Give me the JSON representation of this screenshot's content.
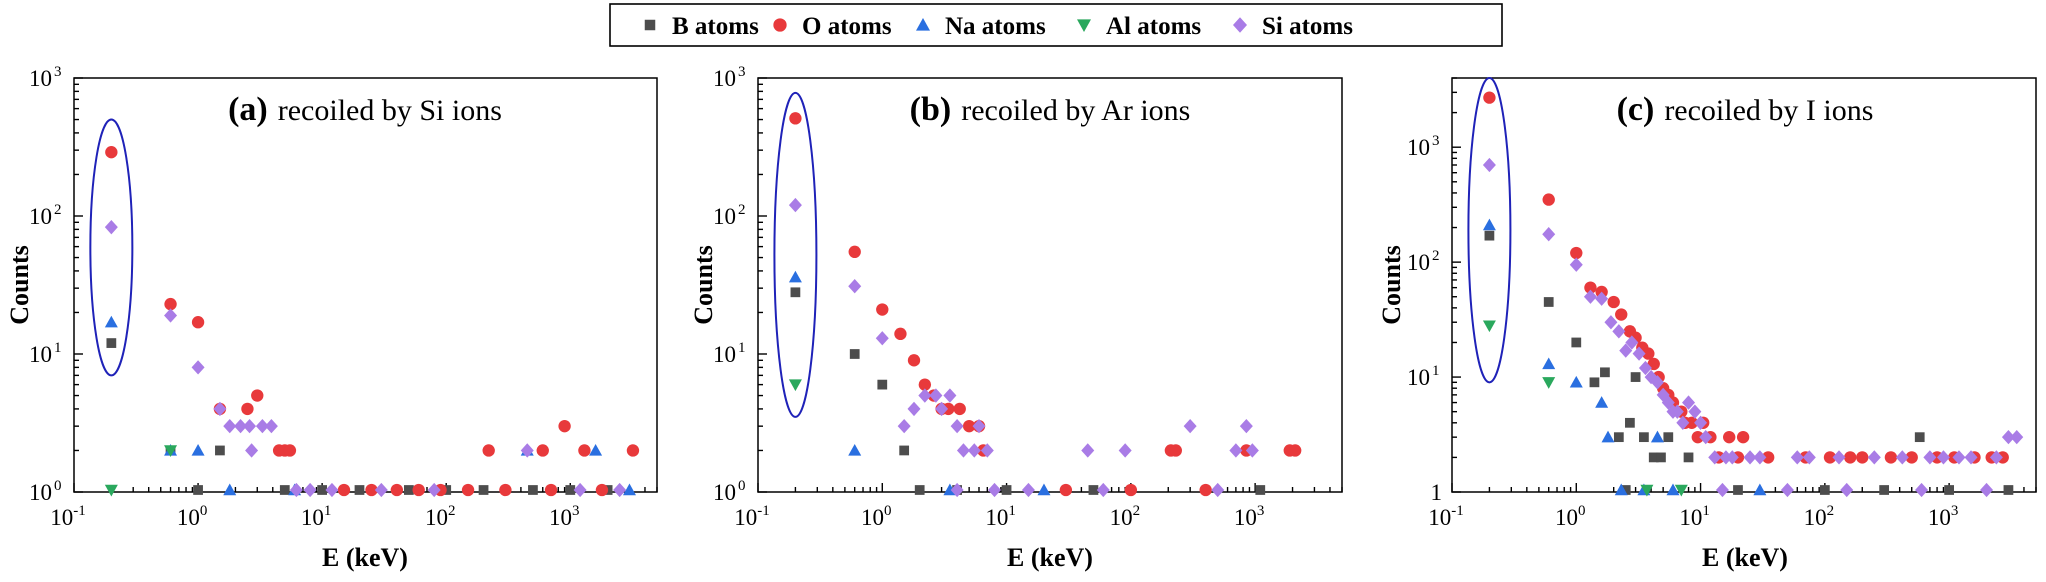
{
  "legend": {
    "items": [
      {
        "label": "B atoms",
        "marker": "square",
        "color": "#4d4d4d"
      },
      {
        "label": "O atoms",
        "marker": "circle",
        "color": "#e8393b"
      },
      {
        "label": "Na atoms",
        "marker": "triangle",
        "color": "#2a6fe0"
      },
      {
        "label": "Al atoms",
        "marker": "tri-down",
        "color": "#2aa85d"
      },
      {
        "label": "Si atoms",
        "marker": "diamond",
        "color": "#a97ce6"
      }
    ]
  },
  "chart_data": [
    {
      "type": "scatter",
      "panel_tag": "(a)",
      "title": "recoiled by Si ions",
      "xlabel": "E (keV)",
      "ylabel": "Counts",
      "xscale": "log",
      "yscale": "log",
      "xlim": [
        0.1,
        5000
      ],
      "ylim": [
        1,
        1000
      ],
      "x_ticks": [
        "10",
        "10",
        "10",
        "10",
        "10"
      ],
      "x_tick_exp": [
        "-1",
        "0",
        "1",
        "2",
        "3"
      ],
      "y_ticks": [
        "10",
        "10",
        "10",
        "10"
      ],
      "y_tick_exp": [
        "0",
        "1",
        "2",
        "3"
      ],
      "highlight_ellipse": {
        "x": 0.2,
        "ylim": [
          7,
          500
        ]
      },
      "series": [
        {
          "name": "B atoms",
          "points": [
            [
              0.2,
              12
            ],
            [
              0.6,
              2
            ],
            [
              1.5,
              2
            ],
            [
              1.0,
              1
            ],
            [
              5,
              1
            ],
            [
              10,
              1
            ],
            [
              20,
              1
            ],
            [
              50,
              1
            ],
            [
              100,
              1
            ],
            [
              200,
              1
            ],
            [
              500,
              1
            ],
            [
              1000,
              1
            ],
            [
              2000,
              1
            ]
          ]
        },
        {
          "name": "O atoms",
          "points": [
            [
              0.2,
              290
            ],
            [
              0.6,
              23
            ],
            [
              1.0,
              17
            ],
            [
              1.5,
              4
            ],
            [
              2.5,
              4
            ],
            [
              3.0,
              5
            ],
            [
              4.5,
              2
            ],
            [
              5.0,
              2
            ],
            [
              5.5,
              2
            ],
            [
              220,
              2
            ],
            [
              600,
              2
            ],
            [
              900,
              3
            ],
            [
              1300,
              2
            ],
            [
              3200,
              2
            ],
            [
              15,
              1
            ],
            [
              25,
              1
            ],
            [
              40,
              1
            ],
            [
              60,
              1
            ],
            [
              90,
              1
            ],
            [
              150,
              1
            ],
            [
              300,
              1
            ],
            [
              700,
              1
            ],
            [
              1800,
              1
            ]
          ]
        },
        {
          "name": "Na atoms",
          "points": [
            [
              0.2,
              17
            ],
            [
              0.6,
              2
            ],
            [
              1.0,
              2
            ],
            [
              450,
              2
            ],
            [
              1600,
              2
            ],
            [
              3000,
              1
            ],
            [
              6,
              1
            ],
            [
              1.8,
              1
            ]
          ]
        },
        {
          "name": "Al atoms",
          "points": [
            [
              0.2,
              1
            ],
            [
              0.6,
              2
            ]
          ]
        },
        {
          "name": "Si atoms",
          "points": [
            [
              0.2,
              83
            ],
            [
              0.6,
              19
            ],
            [
              1.0,
              8
            ],
            [
              1.5,
              4
            ],
            [
              1.8,
              3
            ],
            [
              2.2,
              3
            ],
            [
              2.7,
              2
            ],
            [
              2.6,
              3
            ],
            [
              3.3,
              3
            ],
            [
              3.9,
              3
            ],
            [
              6.2,
              1
            ],
            [
              8,
              1
            ],
            [
              12,
              1
            ],
            [
              30,
              1
            ],
            [
              80,
              1
            ],
            [
              450,
              2
            ],
            [
              1200,
              1
            ],
            [
              2500,
              1
            ]
          ]
        }
      ]
    },
    {
      "type": "scatter",
      "panel_tag": "(b)",
      "title": "recoiled by Ar ions",
      "xlabel": "E (keV)",
      "ylabel": "Counts",
      "xscale": "log",
      "yscale": "log",
      "xlim": [
        0.1,
        5000
      ],
      "ylim": [
        1,
        1000
      ],
      "x_ticks": [
        "10",
        "10",
        "10",
        "10",
        "10"
      ],
      "x_tick_exp": [
        "-1",
        "0",
        "1",
        "2",
        "3"
      ],
      "y_ticks": [
        "10",
        "10",
        "10",
        "10"
      ],
      "y_tick_exp": [
        "0",
        "1",
        "2",
        "3"
      ],
      "highlight_ellipse": {
        "x": 0.2,
        "ylim": [
          3.5,
          780
        ]
      },
      "series": [
        {
          "name": "B atoms",
          "points": [
            [
              0.2,
              28
            ],
            [
              0.6,
              10
            ],
            [
              1.0,
              6
            ],
            [
              1.5,
              2
            ],
            [
              2.0,
              1
            ],
            [
              4,
              1
            ],
            [
              10,
              1
            ],
            [
              50,
              1
            ],
            [
              1100,
              1
            ]
          ]
        },
        {
          "name": "O atoms",
          "points": [
            [
              0.2,
              510
            ],
            [
              0.6,
              55
            ],
            [
              1.0,
              21
            ],
            [
              1.4,
              14
            ],
            [
              1.8,
              9
            ],
            [
              2.2,
              6
            ],
            [
              2.6,
              5
            ],
            [
              3.0,
              4
            ],
            [
              3.4,
              4
            ],
            [
              4.2,
              4
            ],
            [
              5.0,
              3
            ],
            [
              6.0,
              3
            ],
            [
              6.5,
              2
            ],
            [
              210,
              2
            ],
            [
              230,
              2
            ],
            [
              850,
              2
            ],
            [
              1900,
              2
            ],
            [
              2100,
              2
            ],
            [
              30,
              1
            ],
            [
              100,
              1
            ],
            [
              400,
              1
            ]
          ]
        },
        {
          "name": "Na atoms",
          "points": [
            [
              0.2,
              36
            ],
            [
              0.6,
              2
            ],
            [
              3.5,
              1
            ],
            [
              20,
              1
            ]
          ]
        },
        {
          "name": "Al atoms",
          "points": [
            [
              0.2,
              6
            ]
          ]
        },
        {
          "name": "Si atoms",
          "points": [
            [
              0.2,
              120
            ],
            [
              0.6,
              31
            ],
            [
              1.0,
              13
            ],
            [
              1.5,
              3
            ],
            [
              1.8,
              4
            ],
            [
              2.2,
              5
            ],
            [
              2.7,
              5
            ],
            [
              3.0,
              4
            ],
            [
              3.5,
              5
            ],
            [
              4.0,
              3
            ],
            [
              4.5,
              2
            ],
            [
              5.5,
              2
            ],
            [
              6.0,
              3
            ],
            [
              7.0,
              2
            ],
            [
              45,
              2
            ],
            [
              90,
              2
            ],
            [
              300,
              3
            ],
            [
              700,
              2
            ],
            [
              850,
              3
            ],
            [
              950,
              2
            ],
            [
              4,
              1
            ],
            [
              8,
              1
            ],
            [
              15,
              1
            ],
            [
              60,
              1
            ],
            [
              500,
              1
            ]
          ]
        }
      ]
    },
    {
      "type": "scatter",
      "panel_tag": "(c)",
      "title": "recoiled by I ions",
      "xlabel": "E (keV)",
      "ylabel": "Counts",
      "xscale": "log",
      "yscale": "log",
      "xlim": [
        0.1,
        5000
      ],
      "ylim": [
        1,
        4000
      ],
      "x_ticks": [
        "10",
        "10",
        "10",
        "10",
        "10"
      ],
      "x_tick_exp": [
        "-1",
        "0",
        "1",
        "2",
        "3"
      ],
      "y_ticks": [
        "1",
        "10",
        "10",
        "10"
      ],
      "y_tick_exp": [
        "",
        "1",
        "2",
        "3"
      ],
      "highlight_ellipse": {
        "x": 0.2,
        "ylim": [
          9,
          4000
        ]
      },
      "series": [
        {
          "name": "B atoms",
          "points": [
            [
              0.2,
              170
            ],
            [
              0.6,
              45
            ],
            [
              1.0,
              20
            ],
            [
              1.4,
              9
            ],
            [
              1.7,
              11
            ],
            [
              2.2,
              3
            ],
            [
              2.7,
              4
            ],
            [
              3.0,
              10
            ],
            [
              3.5,
              3
            ],
            [
              4.2,
              2
            ],
            [
              4.8,
              2
            ],
            [
              5.5,
              3
            ],
            [
              8,
              2
            ],
            [
              580,
              3
            ],
            [
              2.5,
              1
            ],
            [
              20,
              1
            ],
            [
              100,
              1
            ],
            [
              300,
              1
            ],
            [
              1000,
              1
            ],
            [
              3000,
              1
            ]
          ]
        },
        {
          "name": "O atoms",
          "points": [
            [
              0.2,
              2700
            ],
            [
              0.6,
              350
            ],
            [
              1.0,
              120
            ],
            [
              1.3,
              60
            ],
            [
              1.6,
              55
            ],
            [
              2.0,
              45
            ],
            [
              2.3,
              35
            ],
            [
              2.7,
              25
            ],
            [
              3.0,
              22
            ],
            [
              3.4,
              18
            ],
            [
              3.8,
              16
            ],
            [
              4.2,
              13
            ],
            [
              4.6,
              10
            ],
            [
              5.0,
              8
            ],
            [
              5.5,
              7
            ],
            [
              6.0,
              6
            ],
            [
              7.0,
              5
            ],
            [
              7.5,
              4
            ],
            [
              8.5,
              4
            ],
            [
              9.5,
              3
            ],
            [
              10.5,
              4
            ],
            [
              12,
              3
            ],
            [
              14,
              2
            ],
            [
              17,
              3
            ],
            [
              20,
              2
            ],
            [
              22,
              3
            ],
            [
              35,
              2
            ],
            [
              70,
              2
            ],
            [
              110,
              2
            ],
            [
              160,
              2
            ],
            [
              200,
              2
            ],
            [
              340,
              2
            ],
            [
              500,
              2
            ],
            [
              800,
              2
            ],
            [
              1100,
              2
            ],
            [
              1600,
              2
            ],
            [
              2200,
              2
            ],
            [
              2700,
              2
            ]
          ]
        },
        {
          "name": "Na atoms",
          "points": [
            [
              0.2,
              210
            ],
            [
              0.6,
              13
            ],
            [
              1.0,
              9
            ],
            [
              1.6,
              6
            ],
            [
              1.8,
              3
            ],
            [
              4.5,
              3
            ],
            [
              2.3,
              1
            ],
            [
              3.5,
              1
            ],
            [
              6,
              1
            ],
            [
              30,
              1
            ]
          ]
        },
        {
          "name": "Al atoms",
          "points": [
            [
              0.2,
              28
            ],
            [
              0.6,
              9
            ],
            [
              3.7,
              1
            ],
            [
              7,
              1
            ]
          ]
        },
        {
          "name": "Si atoms",
          "points": [
            [
              0.2,
              700
            ],
            [
              0.6,
              175
            ],
            [
              1.0,
              95
            ],
            [
              1.3,
              50
            ],
            [
              1.6,
              48
            ],
            [
              1.9,
              30
            ],
            [
              2.2,
              25
            ],
            [
              2.5,
              17
            ],
            [
              2.8,
              20
            ],
            [
              3.2,
              16
            ],
            [
              3.6,
              12
            ],
            [
              4.0,
              10
            ],
            [
              4.5,
              9
            ],
            [
              5.0,
              7
            ],
            [
              5.5,
              6
            ],
            [
              6.0,
              5
            ],
            [
              6.5,
              5
            ],
            [
              7.2,
              4
            ],
            [
              8.0,
              6
            ],
            [
              9.0,
              5
            ],
            [
              10,
              4
            ],
            [
              11,
              3
            ],
            [
              13,
              2
            ],
            [
              16,
              2
            ],
            [
              18,
              2
            ],
            [
              25,
              2
            ],
            [
              30,
              2
            ],
            [
              60,
              2
            ],
            [
              75,
              2
            ],
            [
              130,
              2
            ],
            [
              250,
              2
            ],
            [
              420,
              2
            ],
            [
              700,
              2
            ],
            [
              900,
              2
            ],
            [
              1200,
              2
            ],
            [
              1500,
              2
            ],
            [
              2400,
              2
            ],
            [
              3000,
              3
            ],
            [
              3500,
              3
            ],
            [
              15,
              1
            ],
            [
              50,
              1
            ],
            [
              150,
              1
            ],
            [
              600,
              1
            ],
            [
              2000,
              1
            ]
          ]
        }
      ]
    }
  ]
}
